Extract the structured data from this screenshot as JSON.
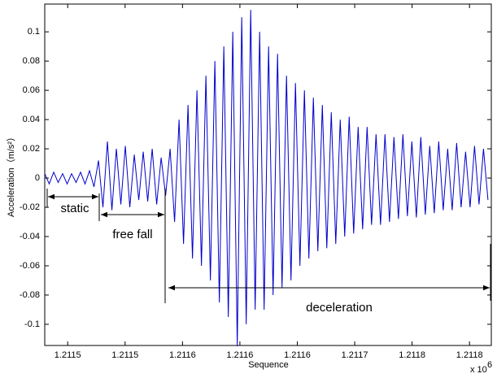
{
  "chart_data": {
    "type": "line",
    "xlabel": "Sequence",
    "ylabel": "Acceleration（m/s²）",
    "multiplier": "x 10",
    "multiplier_exp": "6",
    "annotations": [
      "static",
      "free fall",
      "deceleration"
    ],
    "color": "#0000cc",
    "xlim": [
      1.21143,
      1.211819
    ],
    "ylim": [
      -0.1145,
      0.119
    ],
    "xticks": [
      {
        "value": 1.21145,
        "label": "1.2115"
      },
      {
        "value": 1.2115,
        "label": "1.2115"
      },
      {
        "value": 1.21155,
        "label": "1.2116"
      },
      {
        "value": 1.2116,
        "label": "1.2116"
      },
      {
        "value": 1.21165,
        "label": "1.2116"
      },
      {
        "value": 1.2117,
        "label": "1.2117"
      },
      {
        "value": 1.21175,
        "label": "1.2118"
      },
      {
        "value": 1.2118,
        "label": "1.2118"
      }
    ],
    "yticks": [
      -0.1,
      -0.08,
      -0.06,
      -0.04,
      -0.02,
      0,
      0.02,
      0.04,
      0.06,
      0.08,
      0.1
    ],
    "x": [
      1.21143,
      1.2114339,
      1.2114378,
      1.2114417,
      1.2114456,
      1.2114495,
      1.2114534,
      1.2114573,
      1.2114612,
      1.2114651,
      1.211469,
      1.2114729,
      1.2114768,
      1.2114807,
      1.2114846,
      1.2114885,
      1.2114924,
      1.2114963,
      1.2115002,
      1.2115041,
      1.211508,
      1.2115119,
      1.2115158,
      1.2115197,
      1.2115236,
      1.2115275,
      1.2115314,
      1.2115353,
      1.2115392,
      1.2115431,
      1.211547,
      1.2115509,
      1.2115548,
      1.2115587,
      1.2115626,
      1.2115665,
      1.2115704,
      1.2115743,
      1.2115782,
      1.2115821,
      1.211586,
      1.2115899,
      1.2115938,
      1.2115977,
      1.2116016,
      1.2116055,
      1.2116094,
      1.2116133,
      1.2116172,
      1.2116211,
      1.211625,
      1.2116289,
      1.2116328,
      1.2116367,
      1.2116406,
      1.2116445,
      1.2116484,
      1.2116523,
      1.2116562,
      1.2116601,
      1.211664,
      1.2116679,
      1.2116718,
      1.2116757,
      1.2116796,
      1.2116835,
      1.2116874,
      1.2116913,
      1.2116952,
      1.2116991,
      1.211703,
      1.2117069,
      1.2117108,
      1.2117147,
      1.2117186,
      1.2117225,
      1.2117264,
      1.2117303,
      1.2117342,
      1.2117381,
      1.211742,
      1.2117459,
      1.2117498,
      1.2117537,
      1.2117576,
      1.2117615,
      1.2117654,
      1.2117693,
      1.2117732,
      1.2117771,
      1.211781,
      1.2117849,
      1.2117888,
      1.2117927,
      1.2117966,
      1.2118005,
      1.2118044,
      1.2118083,
      1.2118122,
      1.2118161
    ],
    "values": [
      0.003,
      -0.004,
      0.004,
      -0.003,
      0.003,
      -0.004,
      0.003,
      -0.003,
      0.004,
      -0.004,
      0.005,
      -0.006,
      0.012,
      -0.02,
      0.025,
      -0.022,
      0.02,
      -0.018,
      0.022,
      -0.02,
      0.016,
      -0.015,
      0.018,
      -0.016,
      0.02,
      -0.018,
      0.014,
      -0.012,
      0.02,
      -0.03,
      0.04,
      -0.045,
      0.05,
      -0.055,
      0.06,
      -0.06,
      0.07,
      -0.07,
      0.08,
      -0.085,
      0.09,
      -0.095,
      0.1,
      -0.115,
      0.11,
      -0.1,
      0.115,
      -0.09,
      0.1,
      -0.09,
      0.09,
      -0.08,
      0.085,
      -0.075,
      0.07,
      -0.07,
      0.065,
      -0.06,
      0.06,
      -0.055,
      0.055,
      -0.05,
      0.05,
      -0.048,
      0.045,
      -0.045,
      0.04,
      -0.04,
      0.042,
      -0.038,
      0.035,
      -0.035,
      0.035,
      -0.032,
      0.03,
      -0.032,
      0.03,
      -0.03,
      0.028,
      -0.028,
      0.03,
      -0.026,
      0.025,
      -0.027,
      0.028,
      -0.025,
      0.022,
      -0.024,
      0.025,
      -0.022,
      0.02,
      -0.022,
      0.024,
      -0.02,
      0.018,
      -0.02,
      0.022,
      -0.018,
      0.02,
      -0.015
    ]
  }
}
